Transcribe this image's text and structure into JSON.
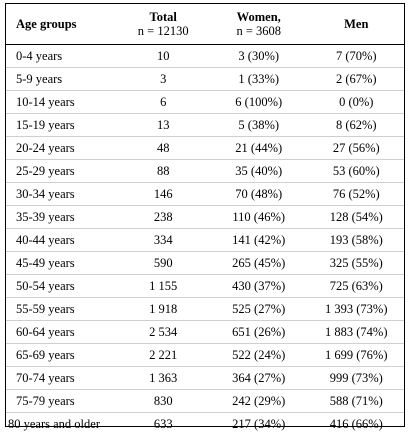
{
  "table": {
    "headers": {
      "age": "Age groups",
      "total_title": "Total",
      "total_sub": "n = 12130",
      "women_title": "Women,",
      "women_sub": "n = 3608",
      "men_title": "Men"
    },
    "rows": [
      {
        "age": "0-4 years",
        "total": "10",
        "women": "3 (30%)",
        "men": "7 (70%)"
      },
      {
        "age": "5-9 years",
        "total": "3",
        "women": "1 (33%)",
        "men": "2 (67%)"
      },
      {
        "age": "10-14 years",
        "total": "6",
        "women": "6 (100%)",
        "men": "0 (0%)"
      },
      {
        "age": "15-19 years",
        "total": "13",
        "women": "5 (38%)",
        "men": "8 (62%)"
      },
      {
        "age": "20-24 years",
        "total": "48",
        "women": "21 (44%)",
        "men": "27 (56%)"
      },
      {
        "age": "25-29 years",
        "total": "88",
        "women": "35 (40%)",
        "men": "53 (60%)"
      },
      {
        "age": "30-34 years",
        "total": "146",
        "women": "70 (48%)",
        "men": "76 (52%)"
      },
      {
        "age": "35-39 years",
        "total": "238",
        "women": "110 (46%)",
        "men": "128 (54%)"
      },
      {
        "age": "40-44 years",
        "total": "334",
        "women": "141 (42%)",
        "men": "193 (58%)"
      },
      {
        "age": "45-49 years",
        "total": "590",
        "women": "265 (45%)",
        "men": "325 (55%)"
      },
      {
        "age": "50-54 years",
        "total": "1 155",
        "women": "430 (37%)",
        "men": "725 (63%)"
      },
      {
        "age": "55-59 years",
        "total": "1 918",
        "women": "525 (27%)",
        "men": "1 393 (73%)"
      },
      {
        "age": "60-64 years",
        "total": "2 534",
        "women": "651 (26%)",
        "men": "1 883 (74%)"
      },
      {
        "age": "65-69 years",
        "total": "2 221",
        "women": "522 (24%)",
        "men": "1 699 (76%)"
      },
      {
        "age": "70-74 years",
        "total": "1 363",
        "women": "364 (27%)",
        "men": "999 (73%)"
      },
      {
        "age": "75-79 years",
        "total": "830",
        "women": "242 (29%)",
        "men": "588 (71%)"
      },
      {
        "age": "80 years and older",
        "total": "633",
        "women": "217 (34%)",
        "men": "416 (66%)"
      }
    ]
  }
}
